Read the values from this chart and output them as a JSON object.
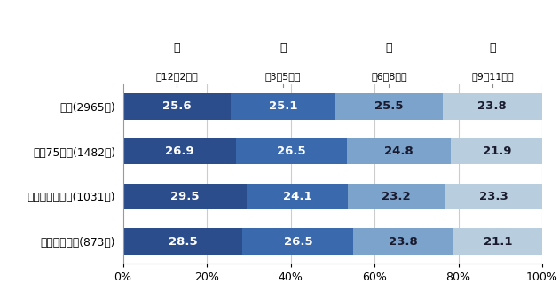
{
  "categories": [
    "全体(2965例)",
    "年齢75歳超(1482例)",
    "心原性脳塞栓症(1031例)",
    "中等症～重症(873例)"
  ],
  "season_line1": [
    "冬",
    "春",
    "夏",
    "秋"
  ],
  "season_line2": [
    "（12～2月）",
    "（3～5月）",
    "（6～8月）",
    "（9～11月）"
  ],
  "values": [
    [
      25.6,
      25.1,
      25.5,
      23.8
    ],
    [
      26.9,
      26.5,
      24.8,
      21.9
    ],
    [
      29.5,
      24.1,
      23.2,
      23.3
    ],
    [
      28.5,
      26.5,
      23.8,
      21.1
    ]
  ],
  "colors": [
    "#2B4D8C",
    "#3A6AAD",
    "#7BA3CC",
    "#B8CEDF"
  ],
  "background_color": "#FFFFFF",
  "bar_height": 0.58,
  "xlim": [
    0,
    100
  ],
  "xlabel_ticks": [
    0,
    20,
    40,
    60,
    80,
    100
  ],
  "xlabel_labels": [
    "0%",
    "20%",
    "40%",
    "60%",
    "80%",
    "100%"
  ],
  "grid_color": "#CCCCCC",
  "text_colors": [
    "white",
    "white",
    "#1A1A2E",
    "#1A1A2E"
  ]
}
